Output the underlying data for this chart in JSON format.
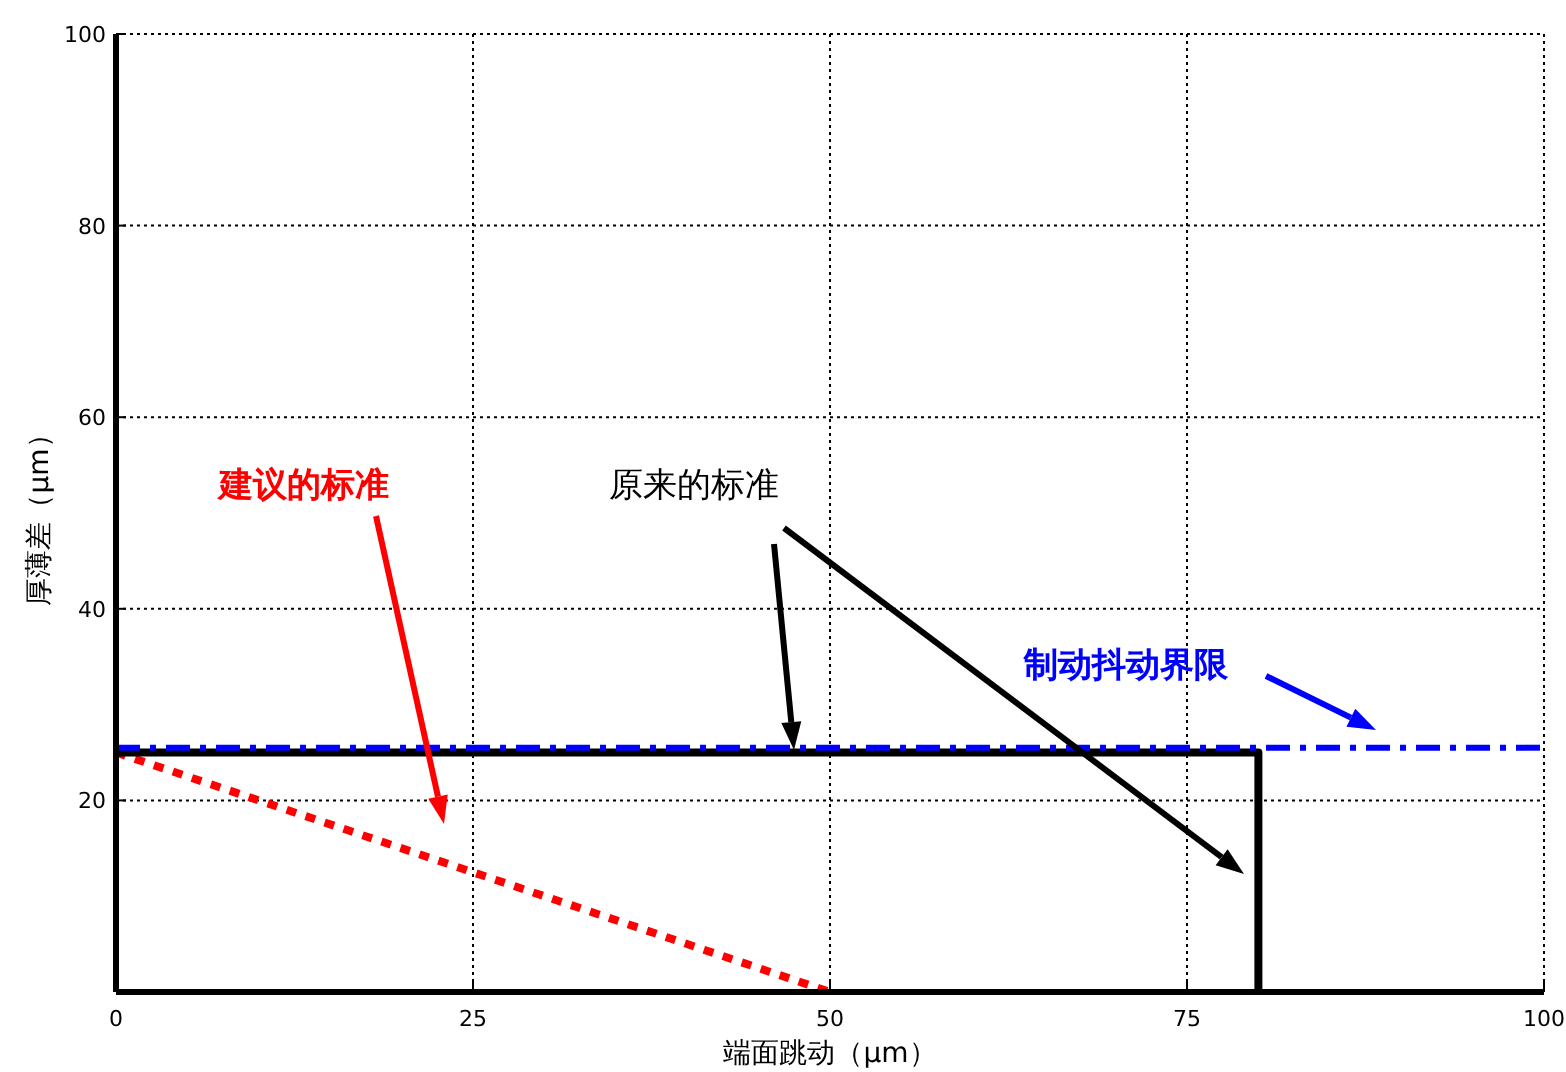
{
  "chart_data": {
    "type": "line",
    "xlabel": "端面跳动（μm）",
    "ylabel": "厚薄差（μm）",
    "xlim": [
      0,
      100
    ],
    "ylim": [
      0,
      100
    ],
    "xticks": [
      0,
      25,
      50,
      75,
      100
    ],
    "yticks": [
      {
        "value": 0,
        "label": null
      },
      20,
      40,
      60,
      80,
      100
    ],
    "grid": true,
    "series": [
      {
        "color": "#ff0000",
        "line_style": "dotted",
        "x": [
          0,
          50
        ],
        "values": [
          25,
          0
        ]
      },
      {
        "color": "#000000",
        "line_style": "solid",
        "x": [
          0,
          80,
          80
        ],
        "values": [
          25,
          25,
          0
        ]
      },
      {
        "color": "#0000ff",
        "line_style": "dashdot",
        "x": [
          0,
          100
        ],
        "values": [
          25.5,
          25.5
        ]
      }
    ],
    "annotations": [
      "建议的标准",
      "原来的标准",
      "制动抖动界限"
    ]
  }
}
